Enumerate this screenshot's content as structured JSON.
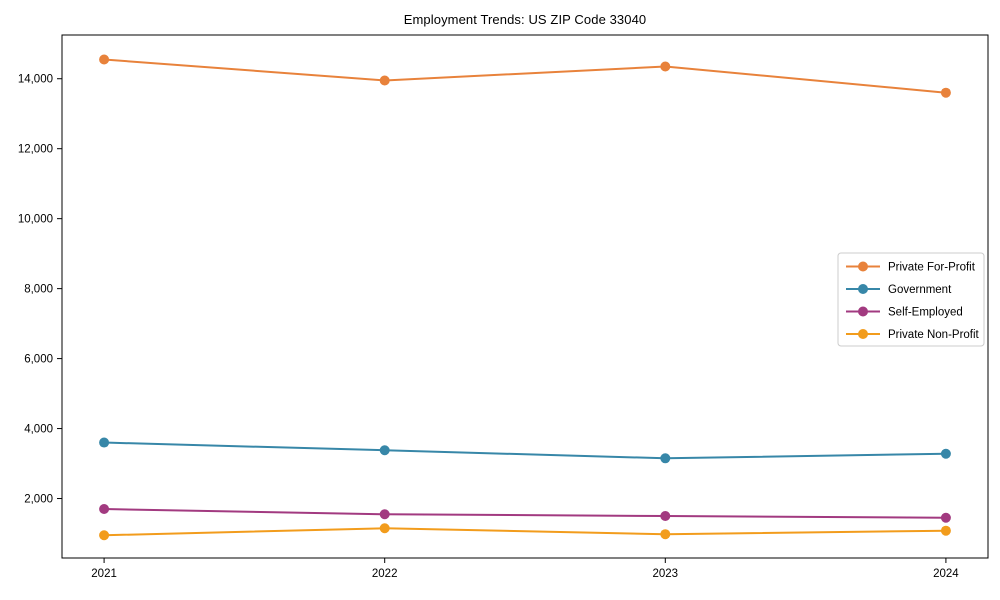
{
  "chart_data": {
    "type": "line",
    "title": "Employment Trends: US ZIP Code 33040",
    "xlabel": "",
    "ylabel": "",
    "categories": [
      "2021",
      "2022",
      "2023",
      "2024"
    ],
    "series": [
      {
        "name": "Private For-Profit",
        "color": "#e8823b",
        "values": [
          14550,
          13950,
          14350,
          13600
        ]
      },
      {
        "name": "Government",
        "color": "#3787a8",
        "values": [
          3600,
          3380,
          3150,
          3280
        ]
      },
      {
        "name": "Self-Employed",
        "color": "#a23a80",
        "values": [
          1700,
          1550,
          1500,
          1450
        ]
      },
      {
        "name": "Private Non-Profit",
        "color": "#f29c1c",
        "values": [
          950,
          1150,
          980,
          1080
        ]
      }
    ],
    "ylim": [
      300,
      15250
    ],
    "yticks": [
      {
        "value": 2000,
        "label": "2,000"
      },
      {
        "value": 4000,
        "label": "4,000"
      },
      {
        "value": 6000,
        "label": "6,000"
      },
      {
        "value": 8000,
        "label": "8,000"
      },
      {
        "value": 10000,
        "label": "10,000"
      },
      {
        "value": 12000,
        "label": "12,000"
      },
      {
        "value": 14000,
        "label": "14,000"
      }
    ],
    "grid": false,
    "marker": "circle",
    "legend_position": "center-right",
    "axis_color": "#000000",
    "legend_border_color": "#cccccc"
  }
}
